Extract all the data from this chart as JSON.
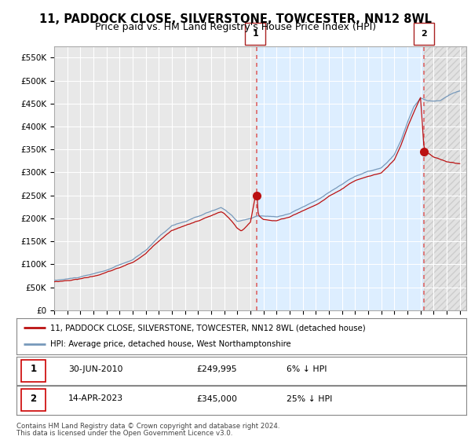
{
  "title": "11, PADDOCK CLOSE, SILVERSTONE, TOWCESTER, NN12 8WL",
  "subtitle": "Price paid vs. HM Land Registry's House Price Index (HPI)",
  "title_fontsize": 10.5,
  "subtitle_fontsize": 9,
  "background_color": "#ffffff",
  "plot_bg_color_left": "#e8e8e8",
  "plot_bg_color_mid": "#ddeeff",
  "plot_bg_color_right": "#e8e8e8",
  "grid_color": "#ffffff",
  "ylim": [
    0,
    575000
  ],
  "yticks": [
    0,
    50000,
    100000,
    150000,
    200000,
    250000,
    300000,
    350000,
    400000,
    450000,
    500000,
    550000
  ],
  "ytick_labels": [
    "£0",
    "£50K",
    "£100K",
    "£150K",
    "£200K",
    "£250K",
    "£300K",
    "£350K",
    "£400K",
    "£450K",
    "£500K",
    "£550K"
  ],
  "xlim_start": 1995.25,
  "xlim_end": 2026.5,
  "hpi_color": "#7799bb",
  "price_color": "#bb1111",
  "vline_color": "#dd6666",
  "marker1_date": 2010.5,
  "marker1_label": "1",
  "marker1_price": 249995,
  "marker2_date": 2023.28,
  "marker2_label": "2",
  "marker2_price": 345000,
  "legend_line1": "11, PADDOCK CLOSE, SILVERSTONE, TOWCESTER, NN12 8WL (detached house)",
  "legend_line2": "HPI: Average price, detached house, West Northamptonshire",
  "footer1": "Contains HM Land Registry data © Crown copyright and database right 2024.",
  "footer2": "This data is licensed under the Open Government Licence v3.0."
}
